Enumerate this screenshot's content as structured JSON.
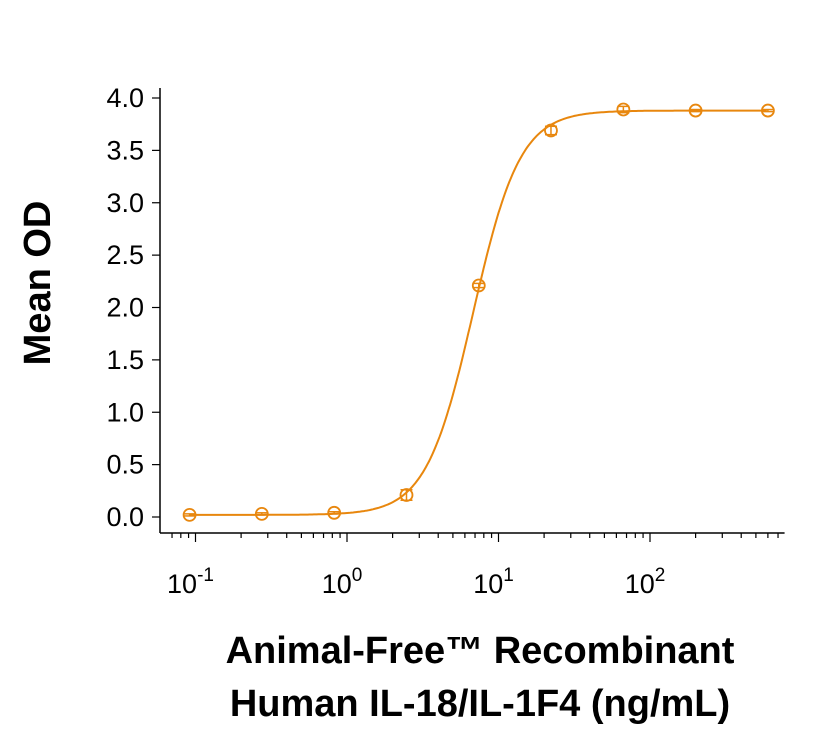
{
  "chart_data": {
    "type": "scatter",
    "title": "",
    "xlabel_lines": [
      "Animal-Free™ Recombinant",
      "Human IL-18/IL-1F4 (ng/mL)"
    ],
    "ylabel": "Mean OD",
    "x_scale": "log",
    "xlim": [
      0.06,
      900
    ],
    "ylim": [
      0,
      4.0
    ],
    "x_ticks": [
      {
        "value": 0.1,
        "base": "10",
        "exp": "-1"
      },
      {
        "value": 1,
        "base": "10",
        "exp": "0"
      },
      {
        "value": 10,
        "base": "10",
        "exp": "1"
      },
      {
        "value": 100,
        "base": "10",
        "exp": "2"
      }
    ],
    "y_ticks": [
      "0.0",
      "0.5",
      "1.0",
      "1.5",
      "2.0",
      "2.5",
      "3.0",
      "3.5",
      "4.0"
    ],
    "grid": false,
    "fit": "4-parameter logistic curve",
    "color": "#E8870E",
    "series": [
      {
        "x": [
          0.0914,
          0.274,
          0.823,
          2.47,
          7.41,
          22.2,
          66.7,
          200,
          600
        ],
        "y": [
          0.02,
          0.03,
          0.04,
          0.21,
          2.21,
          3.69,
          3.89,
          3.88,
          3.88
        ],
        "error": [
          0.01,
          0.01,
          0.01,
          0.05,
          0.02,
          0.04,
          0.03,
          0.01,
          0.01
        ]
      }
    ]
  }
}
